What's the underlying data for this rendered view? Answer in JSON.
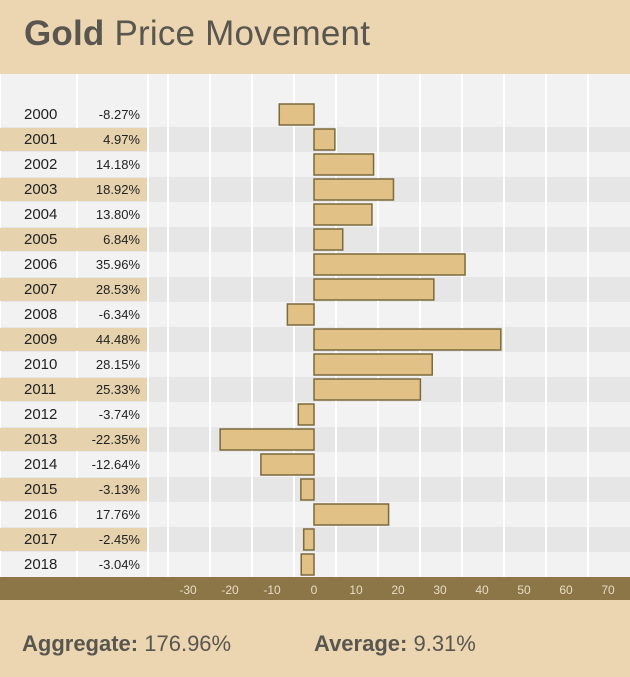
{
  "header": {
    "title_bold": "Gold",
    "title_rest": "Price Movement"
  },
  "footer": {
    "aggregate_label": "Aggregate:",
    "aggregate_value": "176.96%",
    "average_label": "Average:",
    "average_value": "9.31%"
  },
  "colors": {
    "bar_fill": "#e1c186",
    "bar_stroke": "#7a6a3c",
    "axis_band": "#8c7648",
    "row_light": "#f2f2f2",
    "row_dark": "#e6e6e6",
    "label_highlight": "#e6d2ad",
    "header_bg": "#ecd6b2",
    "text": "#59564f"
  },
  "chart_data": {
    "type": "bar",
    "orientation": "horizontal",
    "title": "Gold Price Movement",
    "xlabel": "",
    "ylabel": "",
    "xlim": [
      -32,
      76
    ],
    "x_ticks": [
      -30,
      -20,
      -10,
      0,
      10,
      20,
      30,
      40,
      50,
      60,
      70
    ],
    "grid": true,
    "categories": [
      "2000",
      "2001",
      "2002",
      "2003",
      "2004",
      "2005",
      "2006",
      "2007",
      "2008",
      "2009",
      "2010",
      "2011",
      "2012",
      "2013",
      "2014",
      "2015",
      "2016",
      "2017",
      "2018"
    ],
    "values": [
      -8.27,
      4.97,
      14.18,
      18.92,
      13.8,
      6.84,
      35.96,
      28.53,
      -6.34,
      44.48,
      28.15,
      25.33,
      -3.74,
      -22.35,
      -12.64,
      -3.13,
      17.76,
      -2.45,
      -3.04
    ],
    "value_labels": [
      "-8.27%",
      "4.97%",
      "14.18%",
      "18.92%",
      "13.80%",
      "6.84%",
      "35.96%",
      "28.53%",
      "-6.34%",
      "44.48%",
      "28.15%",
      "25.33%",
      "-3.74%",
      "-22.35%",
      "-12.64%",
      "-3.13%",
      "17.76%",
      "-2.45%",
      "-3.04%"
    ]
  }
}
